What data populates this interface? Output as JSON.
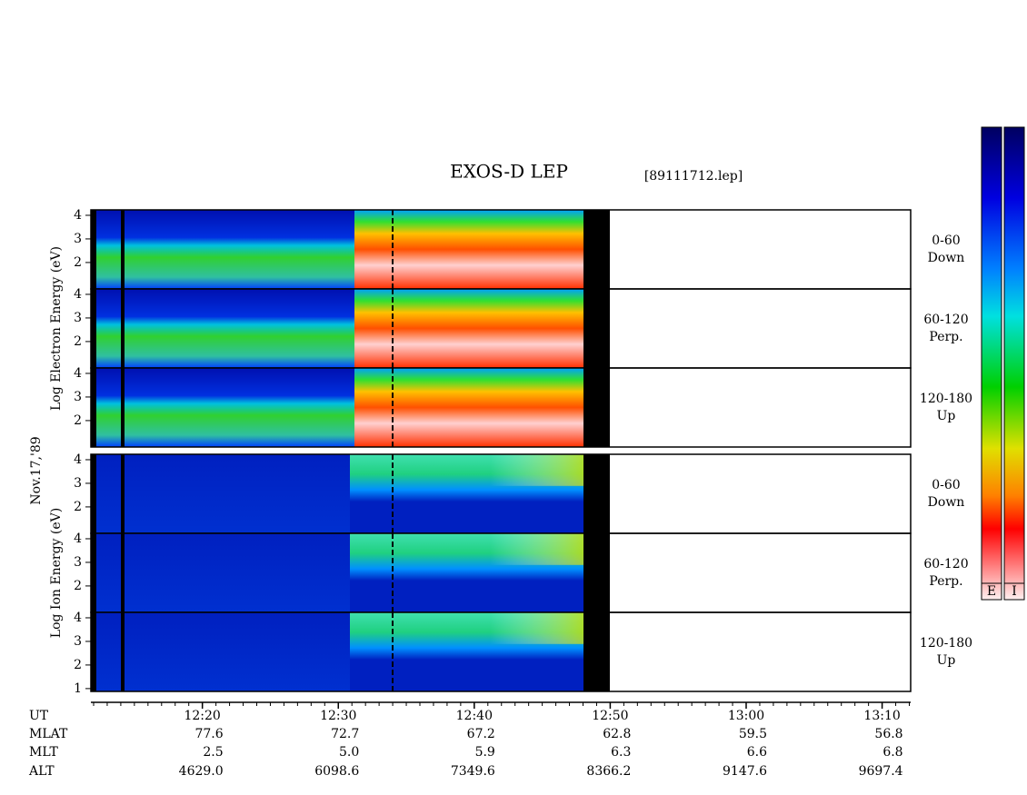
{
  "chart_data": {
    "type": "spectrogram",
    "title": "EXOS-D LEP",
    "file": "[89111712.lep]",
    "date": "Nov.17,'89",
    "groups": [
      {
        "axis_label": "Log Electron Energy (eV)",
        "color_key": "E",
        "panels": [
          {
            "label": [
              "0-60",
              "Down"
            ],
            "yticks": [
              2,
              3,
              4
            ]
          },
          {
            "label": [
              "60-120",
              "Perp."
            ],
            "yticks": [
              2,
              3,
              4
            ]
          },
          {
            "label": [
              "120-180",
              "Up"
            ],
            "yticks": [
              2,
              3,
              4
            ]
          }
        ]
      },
      {
        "axis_label": "Log Ion Energy (eV)",
        "color_key": "I",
        "panels": [
          {
            "label": [
              "0-60",
              "Down"
            ],
            "yticks": [
              2,
              3,
              4
            ]
          },
          {
            "label": [
              "60-120",
              "Perp."
            ],
            "yticks": [
              2,
              3,
              4
            ]
          },
          {
            "label": [
              "120-180",
              "Up"
            ],
            "yticks": [
              1,
              2,
              3,
              4
            ]
          }
        ]
      }
    ],
    "ylim": [
      0.88,
      4.23
    ],
    "xlim": [
      731.8,
      792.1
    ],
    "xticks": [
      {
        "value": 740,
        "label": "12:20"
      },
      {
        "value": 750,
        "label": "12:30"
      },
      {
        "value": 760,
        "label": "12:40"
      },
      {
        "value": 770,
        "label": "12:50"
      },
      {
        "value": 780,
        "label": "13:00"
      },
      {
        "value": 790,
        "label": "13:10"
      }
    ],
    "x_label": "UT",
    "ephemeris": [
      {
        "name": "MLAT",
        "values": [
          "77.6",
          "72.7",
          "67.2",
          "62.8",
          "59.5",
          "56.8"
        ]
      },
      {
        "name": "MLT",
        "values": [
          "2.5",
          "5.0",
          "5.9",
          "6.3",
          "6.6",
          "6.8"
        ]
      },
      {
        "name": "ALT",
        "values": [
          "4629.0",
          "6098.6",
          "7349.6",
          "8366.2",
          "9147.6",
          "9697.4"
        ]
      }
    ]
  }
}
